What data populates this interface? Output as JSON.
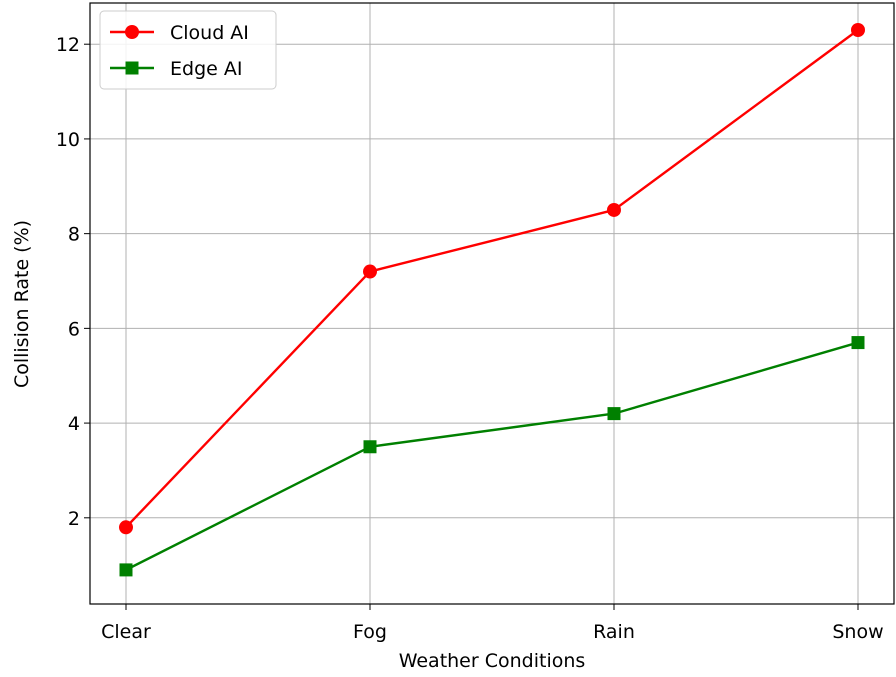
{
  "chart_data": {
    "type": "line",
    "categories": [
      "Clear",
      "Fog",
      "Rain",
      "Snow"
    ],
    "series": [
      {
        "name": "Cloud AI",
        "values": [
          1.8,
          7.2,
          8.5,
          12.3
        ],
        "color": "#ff0000",
        "marker": "circle"
      },
      {
        "name": "Edge AI",
        "values": [
          0.9,
          3.5,
          4.2,
          5.7
        ],
        "color": "#008000",
        "marker": "square"
      }
    ],
    "title": "",
    "xlabel": "Weather Conditions",
    "ylabel": "Collision Rate (%)",
    "ylim": [
      0.18,
      12.87
    ],
    "yticks": [
      2,
      4,
      6,
      8,
      10,
      12
    ],
    "grid": true,
    "legend_position": "top-left"
  }
}
